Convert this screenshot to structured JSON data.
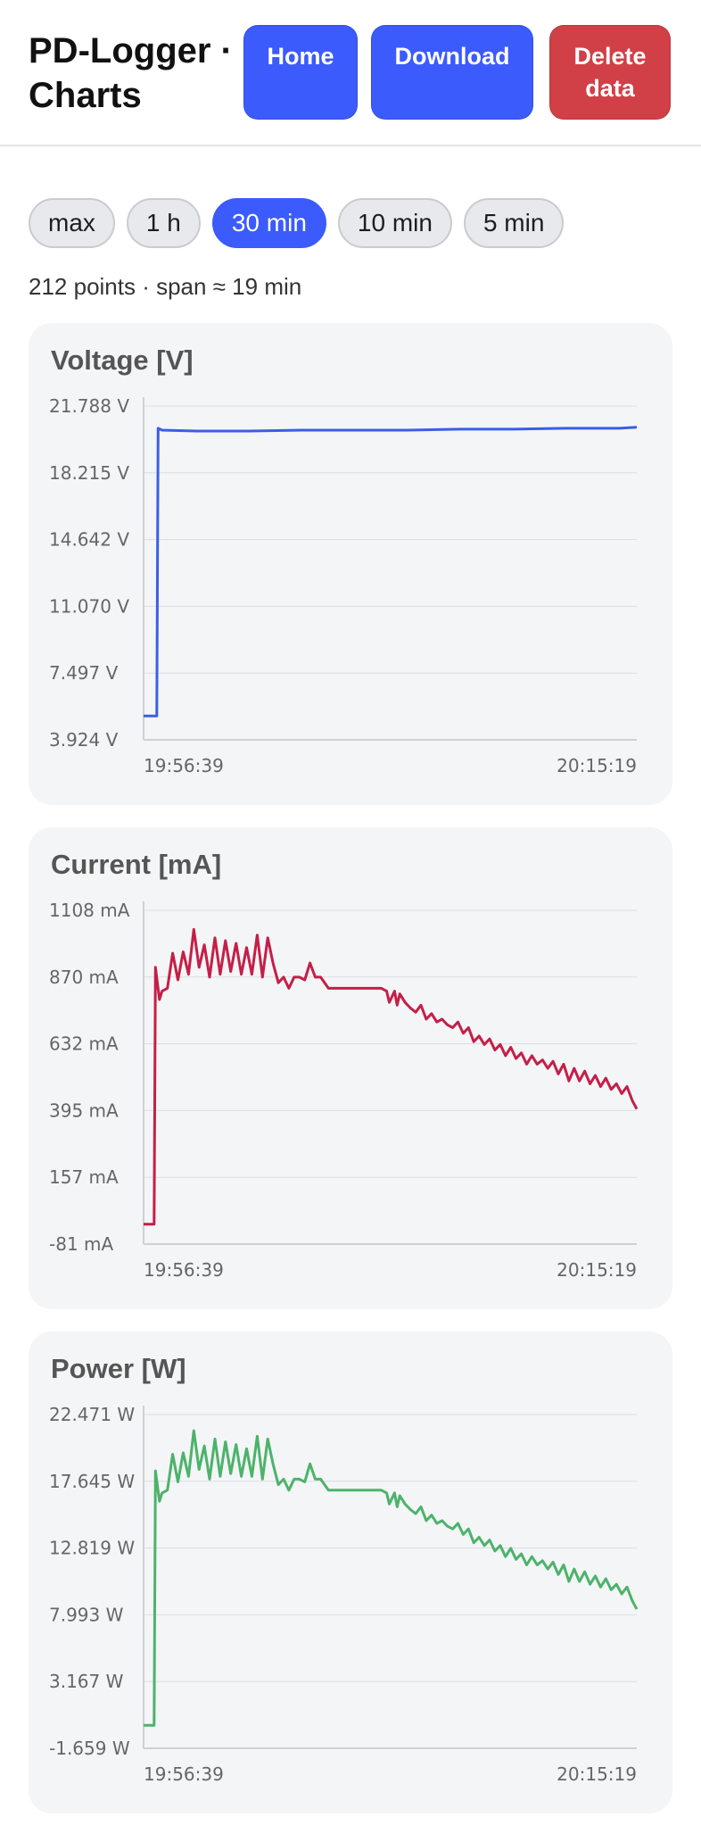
{
  "header": {
    "title": "PD-Logger · Charts",
    "home_label": "Home",
    "download_label": "Download",
    "delete_label": "Delete data"
  },
  "ranges": {
    "options": [
      "max",
      "1 h",
      "30 min",
      "10 min",
      "5 min"
    ],
    "selected": "30 min"
  },
  "summary": "212 points · span ≈ 19 min",
  "charts": [
    {
      "key": "voltage",
      "title": "Voltage [V]",
      "color": "#3b5ee6",
      "y_ticks": [
        "21.788 V",
        "18.215 V",
        "14.642 V",
        "11.070 V",
        "7.497 V",
        "3.924 V"
      ],
      "x_ticks": [
        "19:56:39",
        "20:15:19"
      ]
    },
    {
      "key": "current",
      "title": "Current [mA]",
      "color": "#c41f47",
      "y_ticks": [
        "1108 mA",
        "870 mA",
        "632 mA",
        "395 mA",
        "157 mA",
        "-81 mA"
      ],
      "x_ticks": [
        "19:56:39",
        "20:15:19"
      ]
    },
    {
      "key": "power",
      "title": "Power [W]",
      "color": "#4cb36a",
      "y_ticks": [
        "22.471 W",
        "17.645 W",
        "12.819 W",
        "7.993 W",
        "3.167 W",
        "-1.659 W"
      ],
      "x_ticks": [
        "19:56:39",
        "20:15:19"
      ]
    }
  ],
  "chart_data": [
    {
      "type": "line",
      "title": "Voltage [V]",
      "ylim": [
        3.924,
        21.788
      ],
      "xlim": [
        0,
        18.67
      ],
      "x_tick_labels": [
        "19:56:39",
        "20:15:19"
      ],
      "x": [
        0,
        0.5,
        0.55,
        0.7,
        2.0,
        4.0,
        6.0,
        8.0,
        10.0,
        12.0,
        14.0,
        16.0,
        18.0,
        18.67
      ],
      "values": [
        5.2,
        5.2,
        20.6,
        20.5,
        20.45,
        20.45,
        20.5,
        20.5,
        20.5,
        20.55,
        20.55,
        20.6,
        20.6,
        20.65
      ]
    },
    {
      "type": "line",
      "title": "Current [mA]",
      "ylim": [
        -81,
        1108
      ],
      "xlim": [
        0,
        18.67
      ],
      "x_tick_labels": [
        "19:56:39",
        "20:15:19"
      ],
      "x": [
        0,
        0.4,
        0.45,
        0.6,
        0.7,
        0.9,
        1.1,
        1.3,
        1.5,
        1.7,
        1.9,
        2.1,
        2.3,
        2.5,
        2.7,
        2.9,
        3.1,
        3.3,
        3.5,
        3.7,
        3.9,
        4.1,
        4.3,
        4.5,
        4.7,
        4.9,
        5.1,
        5.3,
        5.5,
        5.7,
        5.9,
        6.1,
        6.3,
        6.5,
        6.7,
        7.0,
        7.5,
        8.0,
        8.5,
        9.0,
        9.2,
        9.3,
        9.5,
        9.6,
        9.7,
        9.9,
        10.1,
        10.3,
        10.5,
        10.7,
        10.9,
        11.1,
        11.3,
        11.5,
        11.7,
        11.9,
        12.1,
        12.3,
        12.5,
        12.7,
        12.9,
        13.1,
        13.3,
        13.5,
        13.7,
        13.9,
        14.1,
        14.3,
        14.5,
        14.7,
        14.9,
        15.1,
        15.3,
        15.5,
        15.7,
        15.9,
        16.1,
        16.3,
        16.5,
        16.7,
        16.9,
        17.1,
        17.3,
        17.5,
        17.7,
        17.9,
        18.1,
        18.3,
        18.5,
        18.67
      ],
      "values": [
        -10,
        -10,
        905,
        790,
        820,
        830,
        955,
        860,
        960,
        880,
        1040,
        905,
        985,
        870,
        1010,
        880,
        1000,
        890,
        990,
        880,
        975,
        880,
        1020,
        870,
        1010,
        920,
        850,
        870,
        830,
        870,
        870,
        860,
        920,
        870,
        870,
        830,
        830,
        830,
        830,
        830,
        820,
        780,
        820,
        770,
        810,
        780,
        760,
        745,
        770,
        720,
        740,
        710,
        720,
        700,
        690,
        710,
        670,
        690,
        640,
        660,
        630,
        650,
        610,
        630,
        590,
        620,
        580,
        600,
        560,
        590,
        560,
        575,
        545,
        570,
        525,
        560,
        500,
        545,
        500,
        535,
        490,
        520,
        480,
        510,
        470,
        490,
        455,
        480,
        430,
        400
      ]
    },
    {
      "type": "line",
      "title": "Power [W]",
      "ylim": [
        -1.659,
        22.471
      ],
      "xlim": [
        0,
        18.67
      ],
      "x_tick_labels": [
        "19:56:39",
        "20:15:19"
      ],
      "x": [
        0,
        0.4,
        0.45,
        0.6,
        0.7,
        0.9,
        1.1,
        1.3,
        1.5,
        1.7,
        1.9,
        2.1,
        2.3,
        2.5,
        2.7,
        2.9,
        3.1,
        3.3,
        3.5,
        3.7,
        3.9,
        4.1,
        4.3,
        4.5,
        4.7,
        4.9,
        5.1,
        5.3,
        5.5,
        5.7,
        5.9,
        6.1,
        6.3,
        6.5,
        6.7,
        7.0,
        7.5,
        8.0,
        8.5,
        9.0,
        9.2,
        9.3,
        9.5,
        9.6,
        9.7,
        9.9,
        10.1,
        10.3,
        10.5,
        10.7,
        10.9,
        11.1,
        11.3,
        11.5,
        11.7,
        11.9,
        12.1,
        12.3,
        12.5,
        12.7,
        12.9,
        13.1,
        13.3,
        13.5,
        13.7,
        13.9,
        14.1,
        14.3,
        14.5,
        14.7,
        14.9,
        15.1,
        15.3,
        15.5,
        15.7,
        15.9,
        16.1,
        16.3,
        16.5,
        16.7,
        16.9,
        17.1,
        17.3,
        17.5,
        17.7,
        17.9,
        18.1,
        18.3,
        18.5,
        18.67
      ],
      "values": [
        0.0,
        0.0,
        18.4,
        16.2,
        16.8,
        17.0,
        19.6,
        17.6,
        19.7,
        18.0,
        21.3,
        18.5,
        20.2,
        17.8,
        20.7,
        18.0,
        20.5,
        18.2,
        20.3,
        18.0,
        20.0,
        18.0,
        20.9,
        17.8,
        20.7,
        18.9,
        17.4,
        17.8,
        17.0,
        17.8,
        17.8,
        17.6,
        18.9,
        17.8,
        17.8,
        17.0,
        17.0,
        17.0,
        17.0,
        17.0,
        16.8,
        16.0,
        16.8,
        15.8,
        16.6,
        16.0,
        15.6,
        15.3,
        15.8,
        14.8,
        15.2,
        14.6,
        14.8,
        14.4,
        14.2,
        14.6,
        13.8,
        14.2,
        13.2,
        13.6,
        13.0,
        13.4,
        12.6,
        13.0,
        12.2,
        12.8,
        12.0,
        12.4,
        11.6,
        12.2,
        11.6,
        11.9,
        11.3,
        11.8,
        10.9,
        11.6,
        10.4,
        11.3,
        10.4,
        11.1,
        10.2,
        10.8,
        10.0,
        10.6,
        9.8,
        10.2,
        9.5,
        10.0,
        9.0,
        8.4
      ]
    }
  ]
}
